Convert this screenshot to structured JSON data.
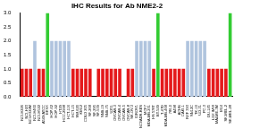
{
  "chart_data": {
    "type": "bar",
    "title": "IHC Results for Ab NME2-2",
    "categories": [
      "NCI-H226",
      "NCI-H23",
      "NCI-H322M",
      "NCI-H460",
      "NCI-H522",
      "A549/ATCC",
      "EKVX",
      "HOP-62",
      "HOP-92",
      "HT29",
      "HCC-2998",
      "HCT-116",
      "HCT-15",
      "SW-620",
      "KM12",
      "COLO 205",
      "SF-268",
      "SF-295",
      "SF-539",
      "SNB-19",
      "SNB-75",
      "U251",
      "OVCAR-3",
      "OVCAR-4",
      "OVCAR-5",
      "OVCAR-8",
      "SK-OV-3",
      "IGROV1",
      "NCI/ADR-RES",
      "MCF7",
      "MDA-MB-231",
      "HS 578T",
      "BT-549",
      "T-47D",
      "MDA-MB-468",
      "786-0",
      "A498",
      "ACHN",
      "CAKI-1",
      "RXF 393",
      "SN12C",
      "TK-10",
      "UO-31",
      "PC-3",
      "DU-145",
      "LOX IMVI",
      "MALME-3M",
      "M14",
      "SK-MEL-2",
      "SK-MEL-28"
    ],
    "values": [
      1,
      1,
      1,
      2,
      1,
      1,
      3,
      2,
      2,
      2,
      2,
      2,
      1,
      1,
      1,
      1,
      1,
      0,
      1,
      1,
      1,
      1,
      1,
      1,
      0,
      1,
      1,
      2,
      2,
      2,
      2,
      1,
      3,
      1,
      1,
      1,
      1,
      1,
      1,
      2,
      2,
      2,
      2,
      2,
      1,
      1,
      1,
      1,
      1,
      3
    ],
    "colors": [
      "#e41a1c",
      "#e41a1c",
      "#e41a1c",
      "#b0c4de",
      "#e41a1c",
      "#e41a1c",
      "#33cc33",
      "#b0c4de",
      "#b0c4de",
      "#b0c4de",
      "#b0c4de",
      "#b0c4de",
      "#e41a1c",
      "#e41a1c",
      "#e41a1c",
      "#e41a1c",
      "#e41a1c",
      "#e41a1c",
      "#e41a1c",
      "#e41a1c",
      "#e41a1c",
      "#e41a1c",
      "#e41a1c",
      "#e41a1c",
      "#e41a1c",
      "#e41a1c",
      "#e41a1c",
      "#b0c4de",
      "#b0c4de",
      "#b0c4de",
      "#b0c4de",
      "#e41a1c",
      "#33cc33",
      "#e41a1c",
      "#e41a1c",
      "#e41a1c",
      "#e41a1c",
      "#e41a1c",
      "#e41a1c",
      "#b0c4de",
      "#b0c4de",
      "#b0c4de",
      "#b0c4de",
      "#b0c4de",
      "#e41a1c",
      "#e41a1c",
      "#e41a1c",
      "#e41a1c",
      "#e41a1c",
      "#33cc33"
    ],
    "ylim": [
      0,
      3
    ],
    "yticks": [
      {
        "value": 0,
        "label": "0.0"
      },
      {
        "value": 0.5,
        "label": "0.5"
      },
      {
        "value": 1,
        "label": "1.0"
      },
      {
        "value": 1.5,
        "label": "1.5"
      },
      {
        "value": 2,
        "label": "2.0"
      },
      {
        "value": 2.5,
        "label": "2.5"
      },
      {
        "value": 3,
        "label": "3.0"
      }
    ],
    "grid": false
  }
}
